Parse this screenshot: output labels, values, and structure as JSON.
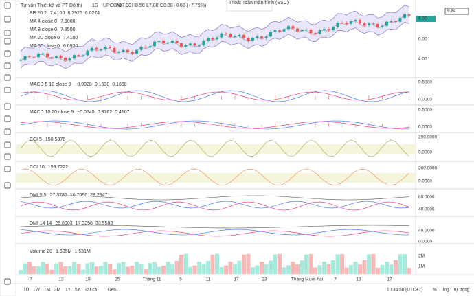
{
  "header": {
    "symbol": "Tư vấn Thiết kế và PT Đô thị",
    "interval": "1D",
    "exchange": "UPCOM",
    "ohlc": [
      "O7.90",
      "H8.50",
      "L7.80",
      "C8.30",
      "+0.60 (+7.79%)"
    ]
  },
  "tooltip": "Thoát Toàn màn hình (ESC)",
  "price_axis": [
    "9.84",
    "8.30",
    "6.00",
    "4.00"
  ],
  "legends": [
    {
      "name": "BB 20 2",
      "values": [
        "7.4100",
        "8.7926",
        "6.0274"
      ]
    },
    {
      "name": "MA 4 close 0",
      "values": [
        "7.9000"
      ]
    },
    {
      "name": "MA 8 close 0",
      "values": [
        "7.8500"
      ]
    },
    {
      "name": "MA 20 close 0",
      "values": [
        "7.4100"
      ]
    },
    {
      "name": "MA 50 close 0",
      "values": [
        "6.0920"
      ]
    },
    {
      "name": "MACD 5 10 close 9",
      "values": [
        "−0.0028",
        "0.1630",
        "0.1658"
      ]
    },
    {
      "name": "MACD 10 20 close 9",
      "values": [
        "−0.0345",
        "0.3762",
        "0.4107"
      ]
    },
    {
      "name": "CCI 5",
      "values": [
        "150.5376"
      ]
    },
    {
      "name": "CCI 10",
      "values": [
        "159.7222"
      ]
    },
    {
      "name": "DMI 5 5",
      "values": [
        "27.3786",
        "16.7096",
        "28.2347"
      ]
    },
    {
      "name": "DMI 14 14",
      "values": [
        "26.8903",
        "17.3258",
        "33.5583"
      ]
    },
    {
      "name": "Volume 20",
      "values": [
        "1.635M",
        "1.531M"
      ]
    }
  ],
  "pane_axes": [
    [
      "0.5000",
      "0.0000"
    ],
    [
      "0.5000",
      "0.0000"
    ],
    [
      "200.0000",
      "0.0000"
    ],
    [
      "200.0000",
      "0.0000"
    ],
    [
      "80.0000",
      "40.0000"
    ],
    [
      "40.0000",
      "0.0000"
    ],
    [
      "2M",
      "1M"
    ]
  ],
  "time_axis": [
    "7",
    "13",
    "19",
    "25",
    "Tháng 11",
    "5",
    "11",
    "17",
    "23",
    "Tháng Mười hai",
    "7",
    "13",
    "17"
  ],
  "bottom": {
    "ranges": [
      "1D",
      "1W",
      "1M",
      "3M",
      "1Y",
      "5Y",
      "Tất cả"
    ],
    "goto": "Đến...",
    "clock": "10:34:58 (UTC+7)",
    "pct": "%",
    "log": "log",
    "auto": "tự động"
  }
}
